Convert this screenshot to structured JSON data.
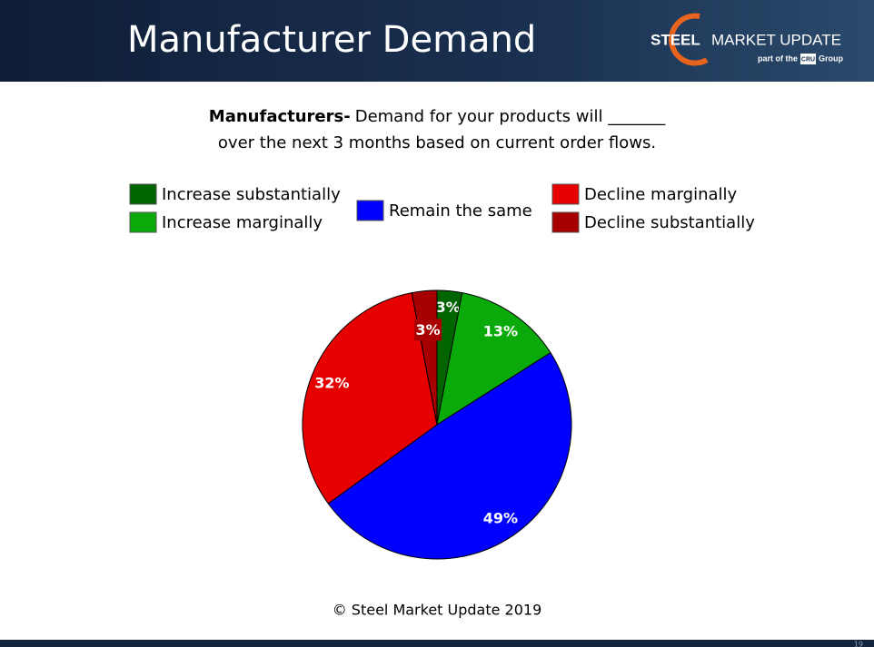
{
  "header": {
    "title": "Manufacturer Demand",
    "logo": {
      "brand_bold": "STEEL",
      "brand_rest": "MARKET UPDATE",
      "tagline_lead": "part of the",
      "tagline_badge": "CRU",
      "tagline_end": "Group"
    }
  },
  "chart_data": {
    "type": "pie",
    "title_lead": "Manufacturers-",
    "title": "Demand for your products will _______",
    "subtitle": "over the next 3 months based on current order flows.",
    "categories": [
      "Increase substantially",
      "Increase marginally",
      "Remain the same",
      "Decline marginally",
      "Decline substantially"
    ],
    "values": [
      3,
      13,
      49,
      32,
      3
    ],
    "value_labels": [
      "3%",
      "13%",
      "49%",
      "32%",
      "3%"
    ],
    "colors": [
      "#006400",
      "#0aaa0a",
      "#0000ff",
      "#e60000",
      "#a80000"
    ]
  },
  "footer": {
    "copyright": "© Steel Market Update 2019",
    "page_number": "19"
  }
}
